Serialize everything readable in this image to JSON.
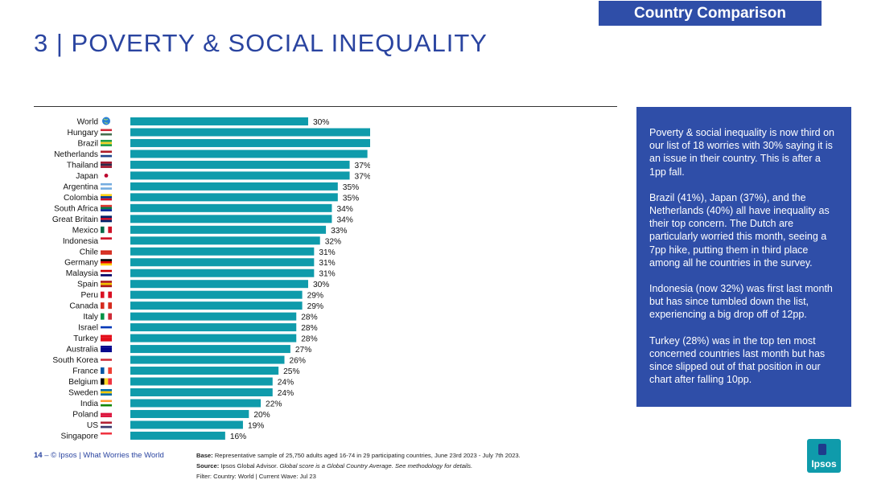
{
  "header": {
    "tag": "Country Comparison",
    "title": "3 | POVERTY & SOCIAL INEQUALITY"
  },
  "colors": {
    "bar": "#0f9bab",
    "accent": "#2f4ea8",
    "title": "#2a44a0"
  },
  "chart_data": {
    "type": "bar",
    "orientation": "horizontal",
    "title": "",
    "xlabel": "",
    "ylabel": "",
    "xlim": [
      0,
      50
    ],
    "unit": "%",
    "categories": [
      "World",
      "Hungary",
      "Brazil",
      "Netherlands",
      "Thailand",
      "Japan",
      "Argentina",
      "Colombia",
      "South Africa",
      "Great Britain",
      "Mexico",
      "Indonesia",
      "Chile",
      "Germany",
      "Malaysia",
      "Spain",
      "Peru",
      "Canada",
      "Italy",
      "Israel",
      "Turkey",
      "Australia",
      "South Korea",
      "France",
      "Belgium",
      "Sweden",
      "India",
      "Poland",
      "US",
      "Singapore"
    ],
    "values": [
      30,
      41,
      41,
      40,
      37,
      37,
      35,
      35,
      34,
      34,
      33,
      32,
      31,
      31,
      31,
      30,
      29,
      29,
      28,
      28,
      28,
      27,
      26,
      25,
      24,
      24,
      22,
      20,
      19,
      16
    ],
    "icons": [
      "globe-icon",
      "flag-hungary-icon",
      "flag-brazil-icon",
      "flag-netherlands-icon",
      "flag-thailand-icon",
      "flag-japan-icon",
      "flag-argentina-icon",
      "flag-colombia-icon",
      "flag-south-africa-icon",
      "flag-great-britain-icon",
      "flag-mexico-icon",
      "flag-indonesia-icon",
      "flag-chile-icon",
      "flag-germany-icon",
      "flag-malaysia-icon",
      "flag-spain-icon",
      "flag-peru-icon",
      "flag-canada-icon",
      "flag-italy-icon",
      "flag-israel-icon",
      "flag-turkey-icon",
      "flag-australia-icon",
      "flag-south-korea-icon",
      "flag-france-icon",
      "flag-belgium-icon",
      "flag-sweden-icon",
      "flag-india-icon",
      "flag-poland-icon",
      "flag-us-icon",
      "flag-singapore-icon"
    ]
  },
  "sidebar": {
    "paragraphs": [
      "Poverty & social inequality is now third on our list of 18 worries with 30% saying it is an issue in their country. This is after a 1pp fall.",
      "Brazil (41%), Japan (37%), and the Netherlands (40%) all have inequality as their top concern. The Dutch are particularly worried this month, seeing a 7pp hike, putting them in third place among all he countries in the survey.",
      "Indonesia (now 32%) was first last month but has since tumbled down the list, experiencing a big drop off of 12pp.",
      "Turkey (28%) was in the top ten most concerned countries last month but has since slipped out of that position in our chart after falling 10pp."
    ]
  },
  "footer": {
    "page_number": "14",
    "separator": "–",
    "copyright": "© Ipsos | What Worries the World",
    "base_label": "Base:",
    "base_text": "Representative sample of 25,750 adults aged 16-74 in 29 participating countries, June 23rd 2023 - July 7th 2023.",
    "source_label": "Source:",
    "source_text": "Ipsos Global Advisor.",
    "source_note": "Global score is a Global Country Average. See methodology for details.",
    "filter": "Filter: Country: World | Current Wave: Jul 23",
    "logo_text": "Ipsos"
  }
}
